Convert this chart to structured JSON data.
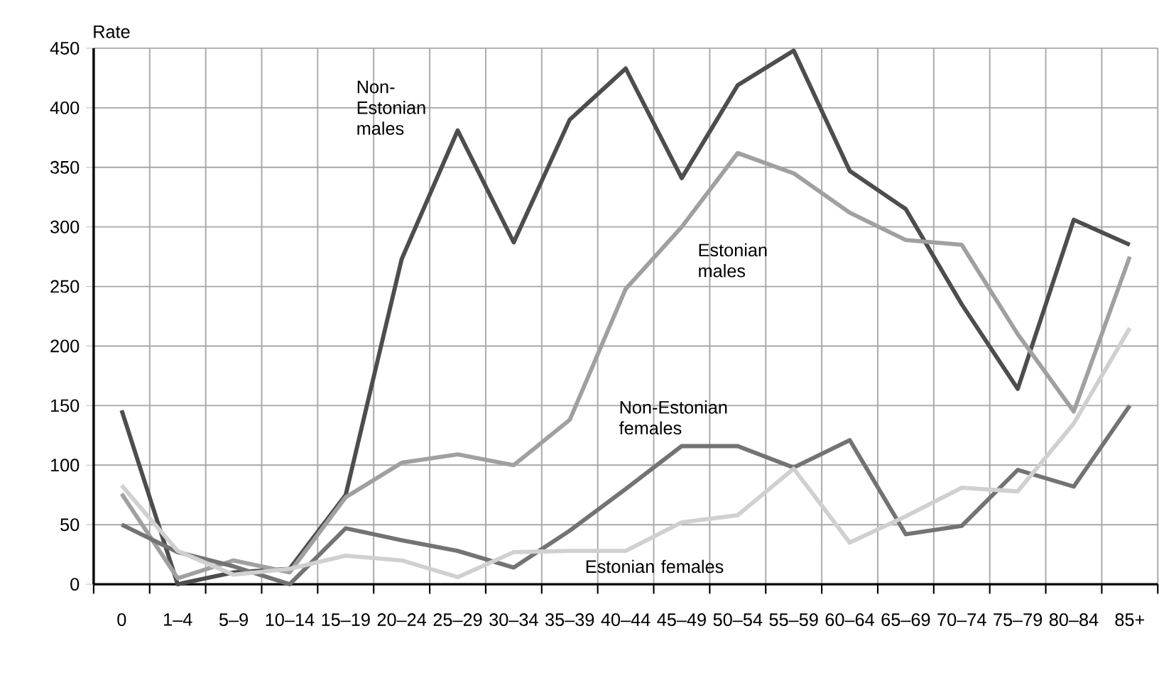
{
  "chart_data": {
    "type": "line",
    "ylabel": "Rate",
    "categories": [
      "0",
      "1–4",
      "5–9",
      "10–14",
      "15–19",
      "20–24",
      "25–29",
      "30–34",
      "35–39",
      "40–44",
      "45–49",
      "50–54",
      "55–59",
      "60–64",
      "65–69",
      "70–74",
      "75–79",
      "80–84",
      "85+"
    ],
    "series": [
      {
        "name": "Non-Estonian males",
        "color": "#4d4d4d",
        "values": [
          146,
          0,
          10,
          13,
          75,
          273,
          381,
          287,
          390,
          433,
          341,
          419,
          448,
          347,
          315,
          235,
          164,
          306,
          285
        ]
      },
      {
        "name": "Estonian males",
        "color": "#a0a0a0",
        "values": [
          76,
          5,
          20,
          10,
          73,
          102,
          109,
          100,
          138,
          248,
          300,
          362,
          345,
          312,
          289,
          285,
          210,
          145,
          275
        ]
      },
      {
        "name": "Non-Estonian females",
        "color": "#737373",
        "values": [
          50,
          27,
          15,
          0,
          47,
          37,
          28,
          14,
          45,
          80,
          116,
          116,
          98,
          121,
          42,
          49,
          96,
          82,
          150
        ]
      },
      {
        "name": "Estonian females",
        "color": "#d0d0d0",
        "values": [
          83,
          28,
          8,
          13,
          24,
          20,
          6,
          27,
          28,
          28,
          52,
          58,
          97,
          35,
          57,
          81,
          78,
          135,
          215
        ]
      }
    ],
    "ylim": [
      0,
      450
    ],
    "yticks": [
      0,
      50,
      100,
      150,
      200,
      250,
      300,
      350,
      400,
      450
    ],
    "grid": true,
    "legend": false,
    "marker": "none",
    "line_style": "solid"
  }
}
